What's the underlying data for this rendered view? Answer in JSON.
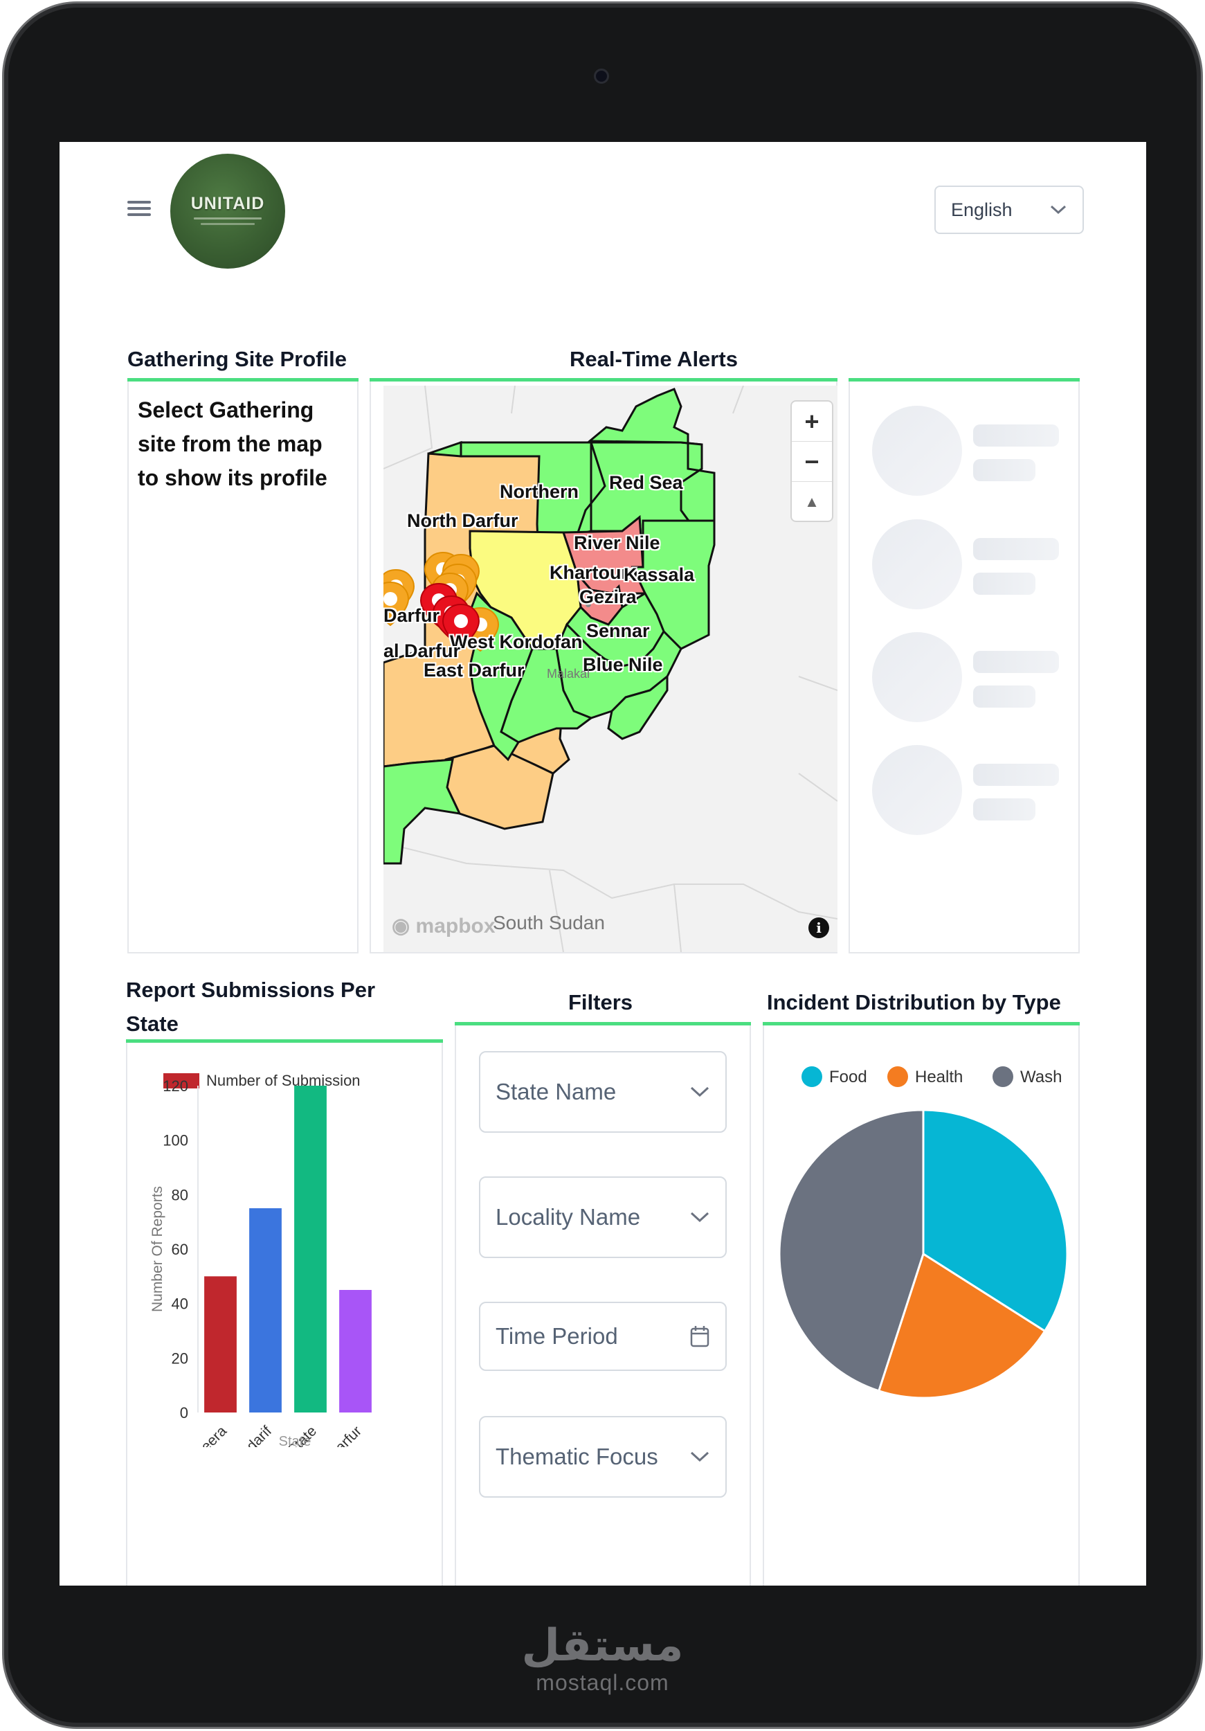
{
  "app": {
    "logo_text": "UNITAID",
    "language": "English"
  },
  "sections": {
    "profile_title": "Gathering Site Profile",
    "profile_hint": "Select Gathering site from the map to show its profile",
    "alerts_title": "Real-Time Alerts",
    "submissions_title": "Report Submissions Per State",
    "filters_title": "Filters",
    "incidents_title": "Incident Distribution by Type"
  },
  "map": {
    "labels": [
      "Northern",
      "Red Sea",
      "North Darfur",
      "River Nile",
      "Khartoum",
      "Kassala",
      "Gezira",
      "Darfur",
      "Sennar",
      "West Kordofan",
      "al Darfur",
      "Blue Nile",
      "East Darfur",
      "South Sudan",
      "Malakal"
    ],
    "zoom_in": "+",
    "zoom_out": "−",
    "compass": "▲",
    "attribution": "mapbox",
    "info": "i",
    "region_colors": {
      "normal": "#7efc7b",
      "warning": "#fdcd85",
      "elevated": "#fbfb80",
      "critical": "#f38b8b"
    }
  },
  "filters": {
    "state": "State Name",
    "locality": "Locality Name",
    "time": "Time Period",
    "thematic": "Thematic Focus"
  },
  "chart_data": [
    {
      "type": "bar",
      "legend": "Number of Submission",
      "ylabel": "Number Of Reports",
      "xlabel": "State",
      "categories": [
        "Al Jazeera",
        "Al Gadarif",
        "White Nile State",
        "South Darfur"
      ],
      "values": [
        50,
        75,
        120,
        45
      ],
      "colors": [
        "#c0272d",
        "#3b75de",
        "#12b981",
        "#a855f7"
      ],
      "ylim": [
        0,
        120
      ],
      "yticks": [
        0,
        20,
        40,
        60,
        80,
        100,
        120
      ],
      "legend_color": "#c0272d"
    },
    {
      "type": "pie",
      "labels": [
        "Food",
        "Health",
        "Wash"
      ],
      "values": [
        34,
        21,
        45
      ],
      "colors": [
        "#06b6d4",
        "#f47c20",
        "#6b7280"
      ]
    }
  ]
}
